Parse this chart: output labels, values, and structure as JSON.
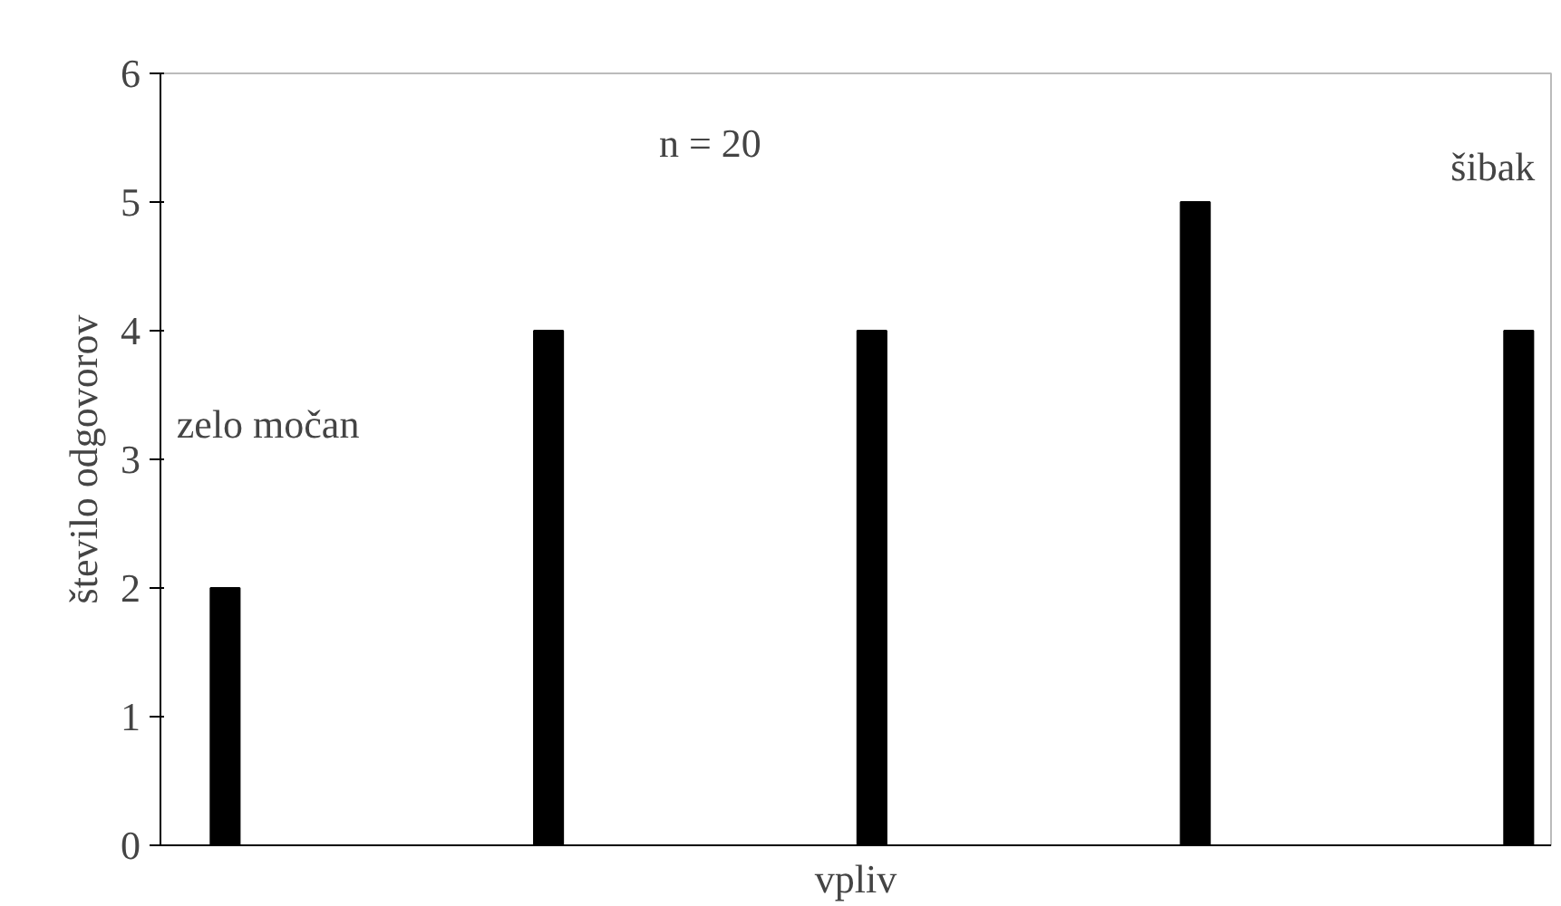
{
  "chart_data": {
    "type": "bar",
    "xlabel": "vpliv",
    "ylabel": "število odgovorov",
    "categories": [
      null,
      null,
      null,
      null,
      null
    ],
    "values": [
      2,
      4,
      4,
      5,
      4
    ],
    "color": "#000000",
    "ylim": [
      0,
      6
    ],
    "yticks": [
      0,
      1,
      2,
      3,
      4,
      5,
      6
    ],
    "annotations": [
      "n = 20",
      "zelo močan",
      "šibak"
    ]
  }
}
